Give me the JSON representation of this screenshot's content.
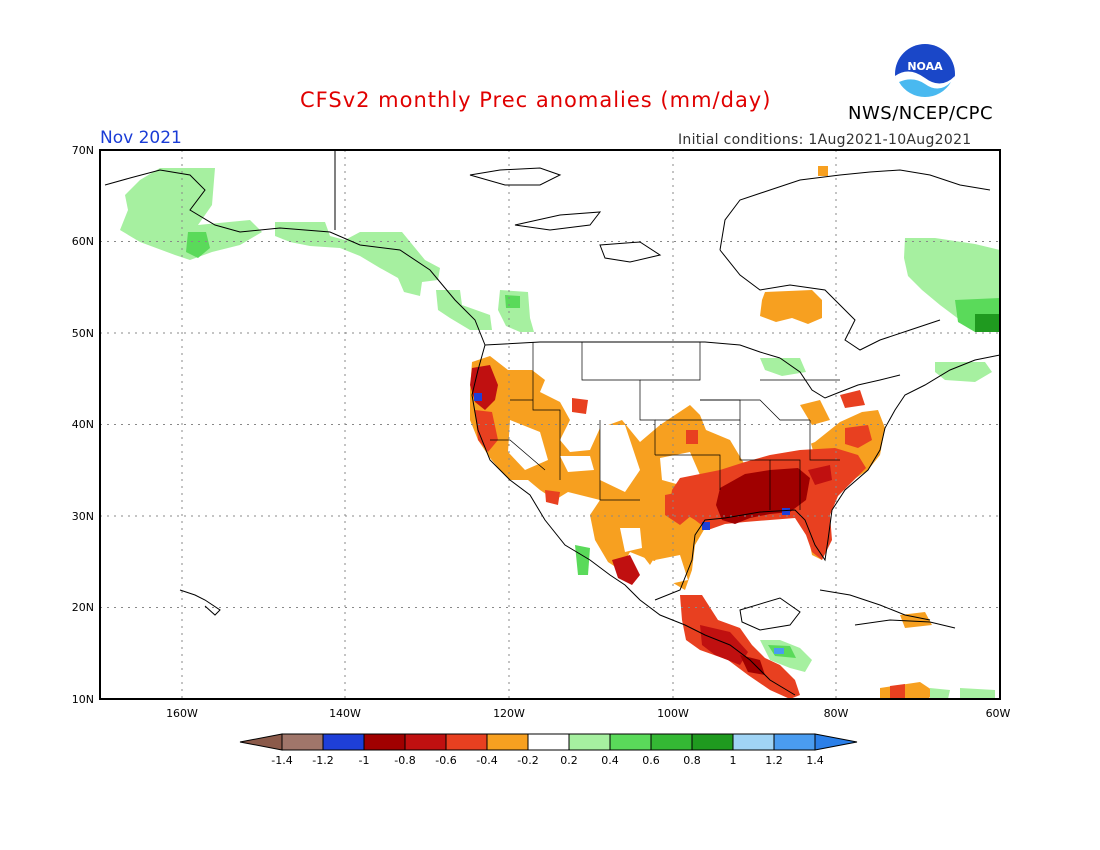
{
  "title": "CFSv2 monthly Prec anomalies (mm/day)",
  "month_label": "Nov 2021",
  "initial_conditions": "Initial conditions: 1Aug2021-10Aug2021",
  "organization": "NWS/NCEP/CPC",
  "logo_text": "NOAA",
  "lat_labels": [
    "70N",
    "60N",
    "50N",
    "40N",
    "30N",
    "20N",
    "10N"
  ],
  "lon_labels": [
    "160W",
    "140W",
    "120W",
    "100W",
    "80W",
    "60W"
  ],
  "colorbar": {
    "colors": [
      "#8b5a4a",
      "#a0766a",
      "#1e3fd8",
      "#a00000",
      "#c01010",
      "#e84020",
      "#f7a020",
      "#ffffff",
      "#a6f0a0",
      "#5ada5a",
      "#34b834",
      "#1f9a1f",
      "#a0d4f5",
      "#4a9cf0",
      "#2b7fe8"
    ],
    "tick_labels": [
      "-1.4",
      "-1.2",
      "-1",
      "-0.8",
      "-0.6",
      "-0.4",
      "-0.2",
      "0.2",
      "0.4",
      "0.6",
      "0.8",
      "1",
      "1.2",
      "1.4"
    ]
  }
}
